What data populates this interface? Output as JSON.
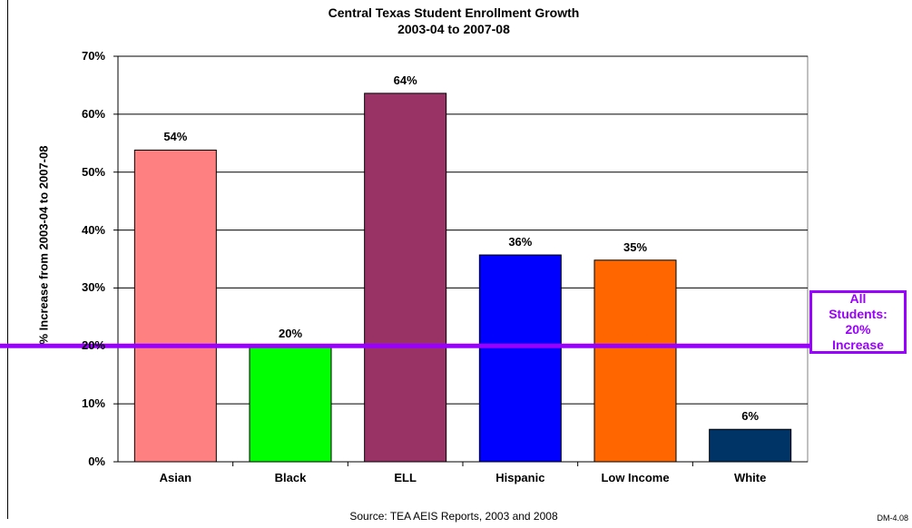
{
  "chart_data": {
    "type": "bar",
    "title": [
      "Central Texas Student Enrollment Growth",
      "2003-04 to 2007-08"
    ],
    "ylabel": "% Increase from 2003-04 to 2007-08",
    "xlabel": "",
    "ylim": [
      0,
      70
    ],
    "yticks": [
      "0%",
      "10%",
      "20%",
      "30%",
      "40%",
      "50%",
      "60%",
      "70%"
    ],
    "categories": [
      "Asian",
      "Black",
      "ELL",
      "Hispanic",
      "Low Income",
      "White"
    ],
    "values": [
      53.8,
      19.9,
      63.6,
      35.7,
      34.8,
      5.6
    ],
    "data_labels": [
      "54%",
      "20%",
      "64%",
      "36%",
      "35%",
      "6%"
    ],
    "colors": [
      "#ff8080",
      "#00ff00",
      "#993366",
      "#0000ff",
      "#ff6600",
      "#003366"
    ],
    "grid": true,
    "reference_line": {
      "value": 20,
      "color": "#9900ff"
    },
    "annotation": [
      "All",
      "Students:",
      "20%",
      "Increase"
    ]
  },
  "source": "Source: TEA AEIS Reports, 2003 and 2008",
  "code": "DM-4.08"
}
